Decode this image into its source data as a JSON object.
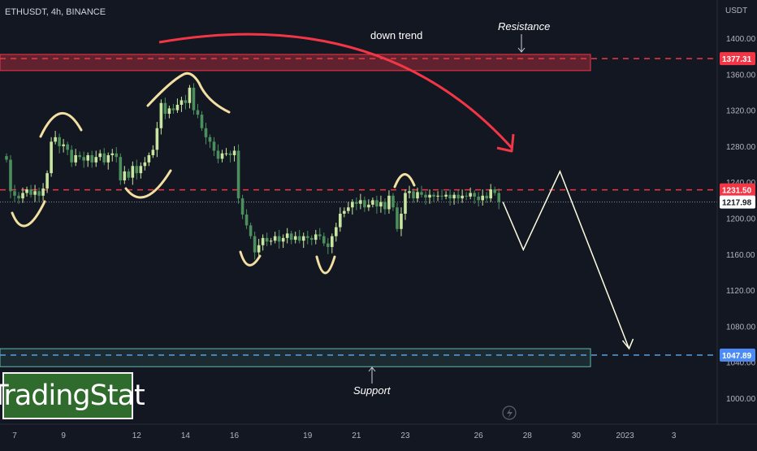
{
  "header": {
    "symbol_line": "ETHUSDT, 4h, BINANCE"
  },
  "price_axis": {
    "unit": "USDT"
  },
  "brand": {
    "name": "TradingStat"
  },
  "annotations": {
    "resistance_label": "Resistance",
    "support_label": "Support",
    "trend_label": "down trend"
  },
  "levels": {
    "resistance": {
      "value": "1377.31",
      "color": "#f23645"
    },
    "mid": {
      "value": "1231.50",
      "color": "#f23645"
    },
    "last": {
      "value": "1217.98",
      "color": "#ffffff"
    },
    "support": {
      "value": "1047.89",
      "color": "#4c8bf5"
    }
  },
  "colors": {
    "bg": "#131722",
    "up": "#c8e6a0",
    "down": "#4b8f5c",
    "arrow_red": "#f23645",
    "scribble": "#f3dfa2",
    "projection": "#ffffe0",
    "support_box": "#5fb9b0"
  },
  "chart_data": {
    "type": "candlestick",
    "title": "ETHUSDT, 4h, BINANCE",
    "yunit": "USDT",
    "ylim": [
      980,
      1440
    ],
    "y_ticks": [
      1000,
      1040,
      1080,
      1120,
      1160,
      1200,
      1240,
      1280,
      1320,
      1360,
      1400
    ],
    "x_ticks": [
      {
        "label": "7",
        "i": 2
      },
      {
        "label": "9",
        "i": 14
      },
      {
        "label": "12",
        "i": 32
      },
      {
        "label": "14",
        "i": 44
      },
      {
        "label": "16",
        "i": 56
      },
      {
        "label": "19",
        "i": 74
      },
      {
        "label": "21",
        "i": 86
      },
      {
        "label": "23",
        "i": 98
      },
      {
        "label": "26",
        "i": 116
      },
      {
        "label": "28",
        "i": 128
      },
      {
        "label": "30",
        "i": 140
      },
      {
        "label": "2023",
        "i": 152
      },
      {
        "label": "3",
        "i": 164
      }
    ],
    "closes": [
      1265,
      1230,
      1225,
      1222,
      1228,
      1232,
      1226,
      1230,
      1225,
      1233,
      1250,
      1285,
      1290,
      1280,
      1282,
      1276,
      1262,
      1270,
      1268,
      1264,
      1270,
      1262,
      1268,
      1272,
      1262,
      1270,
      1272,
      1268,
      1242,
      1252,
      1245,
      1258,
      1250,
      1258,
      1262,
      1270,
      1276,
      1300,
      1328,
      1316,
      1322,
      1320,
      1326,
      1331,
      1328,
      1345,
      1320,
      1315,
      1300,
      1290,
      1285,
      1275,
      1266,
      1272,
      1272,
      1270,
      1275,
      1222,
      1204,
      1192,
      1180,
      1162,
      1170,
      1178,
      1174,
      1175,
      1180,
      1174,
      1178,
      1183,
      1176,
      1180,
      1175,
      1180,
      1178,
      1176,
      1182,
      1180,
      1172,
      1168,
      1180,
      1190,
      1205,
      1208,
      1212,
      1218,
      1216,
      1220,
      1212,
      1215,
      1220,
      1213,
      1218,
      1210,
      1225,
      1212,
      1188,
      1205,
      1228,
      1230,
      1222,
      1229,
      1226,
      1223,
      1226,
      1224,
      1225,
      1224,
      1226,
      1222,
      1226,
      1222,
      1225,
      1224,
      1228,
      1224,
      1220,
      1225,
      1222,
      1232,
      1228,
      1218
    ],
    "levels": [
      {
        "name": "Resistance",
        "value": 1377.31
      },
      {
        "name": "mid",
        "value": 1231.5
      },
      {
        "name": "last",
        "value": 1217.98
      },
      {
        "name": "Support",
        "value": 1047.89
      }
    ],
    "projection": [
      {
        "i": 122,
        "price": 1218
      },
      {
        "i": 127,
        "price": 1165
      },
      {
        "i": 136,
        "price": 1252
      },
      {
        "i": 153,
        "price": 1055
      }
    ],
    "grid": false
  }
}
